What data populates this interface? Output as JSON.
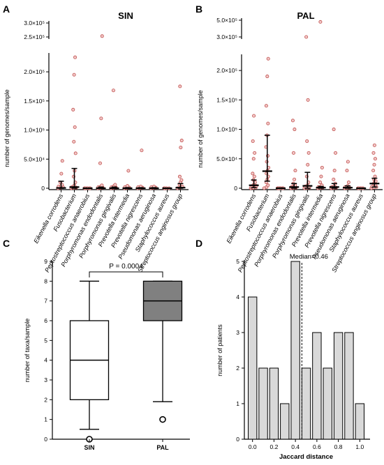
{
  "colors": {
    "point_fill": "#f2c8c8",
    "point_stroke": "#c0504d",
    "box_fill_pal": "#808080",
    "bar_fill": "#d9d9d9",
    "axis": "#000000"
  },
  "chart_data": [
    {
      "panel": "A",
      "type": "scatter",
      "title": "SIN",
      "ylabel": "number of genomes/sample",
      "yticks_lower": [
        "0",
        "5.0×10⁴",
        "1.0×10⁵",
        "1.5×10⁵",
        "2.0×10⁵"
      ],
      "yticks_upper": [
        "2.5×10⁵",
        "3.0×10⁵"
      ],
      "ylim_lower": [
        0,
        230000
      ],
      "ylim_upper": [
        240000,
        300000
      ],
      "categories": [
        "Eikenella corrodens",
        "Fusobacterium",
        "Peptostreptococcus anaerobius",
        "Porphyromonas endodontalis",
        "Porphyromonas gingivalis",
        "Prevotella intermedia",
        "Prevotella nigrescens",
        "Pseudomonas aeruginosa",
        "Staphylococcus aureus",
        "Streptococcus anginosus group"
      ],
      "medians": [
        500,
        2000,
        0,
        0,
        0,
        0,
        0,
        0,
        0,
        1000
      ],
      "error_bars": [
        [
          0,
          12000
        ],
        [
          0,
          34000
        ],
        [
          0,
          0
        ],
        [
          0,
          2000
        ],
        [
          0,
          2000
        ],
        [
          0,
          1000
        ],
        [
          0,
          1000
        ],
        [
          0,
          1000
        ],
        [
          0,
          0
        ],
        [
          0,
          8000
        ]
      ],
      "points": [
        [
          0,
          1000,
          2000,
          3000,
          4000,
          6000,
          10000,
          25000,
          47000
        ],
        [
          0,
          500,
          1000,
          2000,
          5000,
          10000,
          20000,
          30000,
          60000,
          80000,
          105000,
          135000,
          195000,
          225000
        ],
        [
          0,
          0,
          0,
          0,
          0,
          0
        ],
        [
          0,
          500,
          1000,
          2000,
          3000,
          5000,
          43000,
          120000,
          253000
        ],
        [
          0,
          500,
          1000,
          2000,
          4000,
          6000,
          168000
        ],
        [
          0,
          500,
          1000,
          2000,
          4000,
          30000
        ],
        [
          0,
          500,
          1000,
          2000,
          3000,
          65000
        ],
        [
          0,
          500,
          1000,
          2000,
          3000
        ],
        [
          0,
          0,
          0,
          0
        ],
        [
          0,
          1000,
          3000,
          6000,
          10000,
          14000,
          20000,
          70000,
          82000,
          175000
        ]
      ]
    },
    {
      "panel": "B",
      "type": "scatter",
      "title": "PAL",
      "ylabel": "number of genomes/sample",
      "yticks_lower": [
        "0",
        "5.0×10⁴",
        "1.0×10⁵",
        "1.5×10⁵",
        "2.0×10⁵"
      ],
      "yticks_upper": [
        "3.0×10⁵",
        "5.0×10⁵"
      ],
      "categories": [
        "Eikenella corrodens",
        "Fusobacterium",
        "Peptostreptococcus anaerobius",
        "Porphyromonas endodontalis",
        "Porphyromonas gingivalis",
        "Prevotella intermedia",
        "Prevotella nigrescens",
        "Pseudomonas aeruginosa",
        "Staphylococcus aureus",
        "Streptococcus anginosus group"
      ],
      "medians": [
        5000,
        29000,
        0,
        2000,
        4000,
        1000,
        2000,
        1000,
        0,
        8000
      ],
      "error_bars": [
        [
          1000,
          14000
        ],
        [
          12000,
          90000
        ],
        [
          0,
          500
        ],
        [
          0,
          8000
        ],
        [
          0,
          27000
        ],
        [
          0,
          3000
        ],
        [
          0,
          8000
        ],
        [
          0,
          4000
        ],
        [
          0,
          0
        ],
        [
          2000,
          17000
        ]
      ],
      "points": [
        [
          0,
          500,
          1000,
          2000,
          3000,
          4000,
          5000,
          7000,
          10000,
          14000,
          20000,
          25000,
          50000,
          60000,
          80000,
          123000
        ],
        [
          0,
          2000,
          5000,
          10000,
          15000,
          20000,
          25000,
          30000,
          35000,
          45000,
          55000,
          70000,
          90000,
          110000,
          140000,
          190000,
          220000
        ],
        [
          0,
          0,
          0,
          0,
          0,
          0,
          0
        ],
        [
          0,
          500,
          1000,
          2000,
          3000,
          5000,
          8000,
          15000,
          30000,
          60000,
          100000,
          115000
        ],
        [
          0,
          500,
          1000,
          3000,
          5000,
          10000,
          20000,
          40000,
          60000,
          80000,
          150000,
          300000
        ],
        [
          0,
          500,
          1000,
          2000,
          3000,
          5000,
          10000,
          20000,
          35000,
          480000
        ],
        [
          0,
          500,
          1000,
          2000,
          4000,
          8000,
          15000,
          30000,
          60000,
          100000
        ],
        [
          0,
          500,
          1000,
          2000,
          4000,
          10000,
          30000,
          45000
        ],
        [
          0,
          0,
          0,
          0,
          0
        ],
        [
          0,
          1000,
          2000,
          3000,
          4000,
          6000,
          8000,
          10000,
          12000,
          15000,
          20000,
          30000,
          40000,
          50000,
          60000,
          73000
        ]
      ]
    },
    {
      "panel": "C",
      "type": "box",
      "ylabel": "number of taxa/sample",
      "ylim": [
        0,
        9
      ],
      "yticks": [
        0,
        1,
        2,
        3,
        4,
        5,
        6,
        7,
        8,
        9
      ],
      "categories": [
        "SIN",
        "PAL"
      ],
      "boxes": [
        {
          "whisker_low": 0.5,
          "q1": 2,
          "median": 4,
          "q3": 6,
          "whisker_high": 8,
          "outliers": [
            0
          ]
        },
        {
          "whisker_low": 1.9,
          "q1": 6,
          "median": 7,
          "q3": 8,
          "whisker_high": 8,
          "outliers": [
            1
          ]
        }
      ],
      "annotation": "P = 0.0004"
    },
    {
      "panel": "D",
      "type": "bar",
      "xlabel": "Jaccard distance",
      "ylabel": "number of patients",
      "xlim": [
        -0.05,
        1.05
      ],
      "ylim": [
        0,
        5
      ],
      "xticks": [
        "0.0",
        "0.2",
        "0.4",
        "0.6",
        "0.8",
        "1.0"
      ],
      "yticks": [
        0,
        1,
        2,
        3,
        4,
        5
      ],
      "bin_centers": [
        0.0,
        0.1,
        0.2,
        0.3,
        0.4,
        0.5,
        0.6,
        0.7,
        0.8,
        0.9,
        1.0
      ],
      "values": [
        4,
        2,
        2,
        1,
        5,
        2,
        3,
        2,
        3,
        3,
        1
      ],
      "median": 0.46,
      "median_label": "Median=0.46"
    }
  ]
}
